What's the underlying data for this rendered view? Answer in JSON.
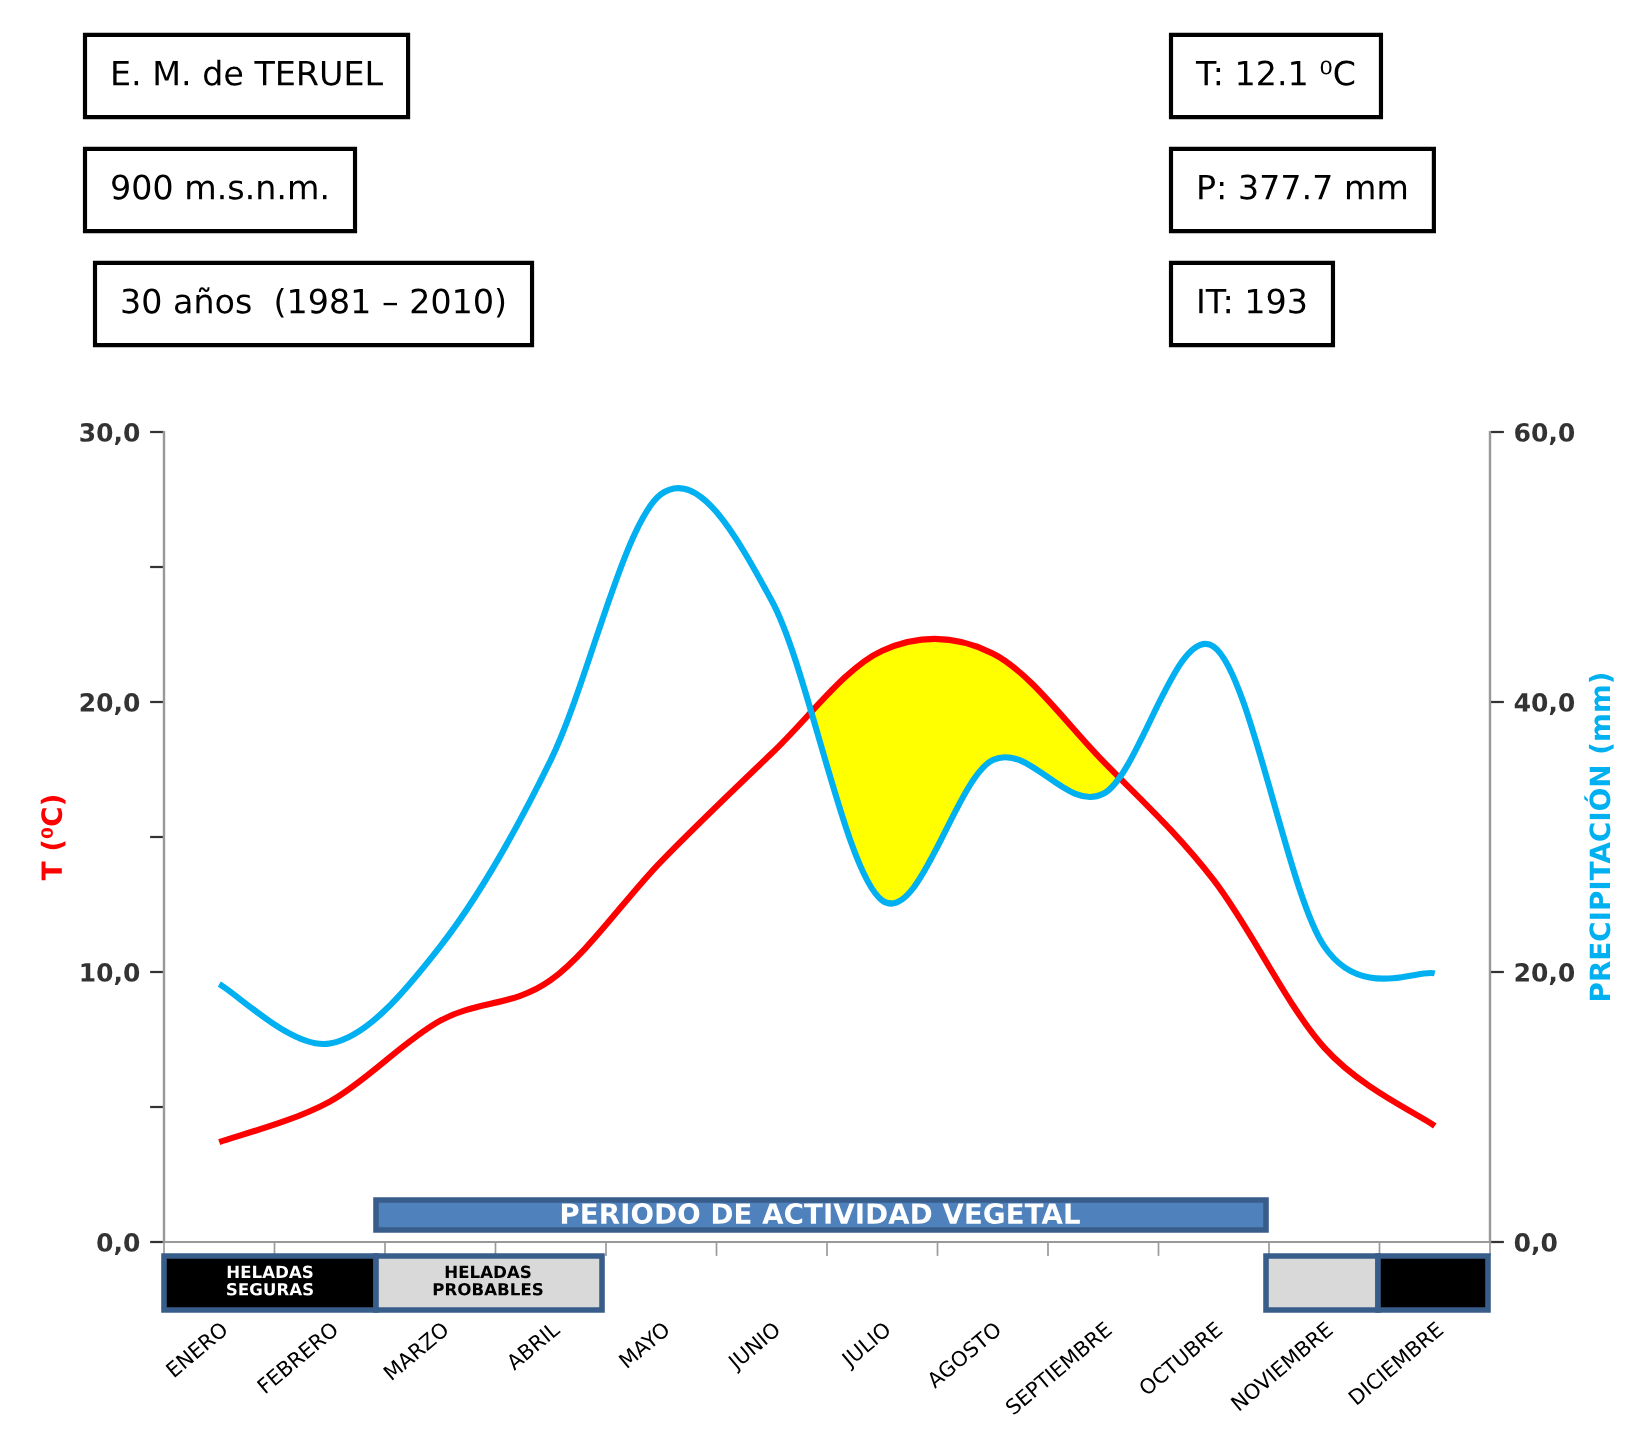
{
  "chart_data": {
    "type": "line",
    "categories": [
      "ENERO",
      "FEBRERO",
      "MARZO",
      "ABRIL",
      "MAYO",
      "JUNIO",
      "JULIO",
      "AGOSTO",
      "SEPTIEMBRE",
      "OCTUBRE",
      "NOVIEMBRE",
      "DICIEMBRE"
    ],
    "series": [
      {
        "color": "#ff0000",
        "values": [
          3.7,
          5.2,
          8.2,
          9.7,
          14.1,
          18.1,
          21.9,
          21.8,
          17.8,
          13.4,
          7.2,
          4.3
        ]
      },
      {
        "color": "#00b0f0",
        "axis": "y2",
        "values": [
          19.1,
          14.7,
          21.9,
          35.7,
          55.4,
          47.5,
          25.3,
          35.7,
          33.2,
          44.1,
          21.9,
          19.9
        ]
      }
    ],
    "ylabel": "T (⁰C)",
    "y2label": "PRECIPITACIÓN (mm)",
    "ylim": [
      0,
      30
    ],
    "yticks": [
      {
        "value": 0,
        "label": "0,0"
      },
      {
        "value": 5,
        "label": null
      },
      {
        "value": 10,
        "label": "10,0"
      },
      {
        "value": 15,
        "label": null
      },
      {
        "value": 20,
        "label": "20,0"
      },
      {
        "value": 25,
        "label": null
      },
      {
        "value": 30,
        "label": "30,0"
      }
    ],
    "y2lim": [
      0,
      60
    ],
    "y2ticks": [
      {
        "value": 0,
        "label": "0,0"
      },
      {
        "value": 20,
        "label": "20,0"
      },
      {
        "value": 40,
        "label": "40,0"
      },
      {
        "value": 60,
        "label": "60,0"
      }
    ],
    "annotations": [
      "E. M. de TERUEL",
      "900 m.s.n.m.",
      "30 años  (1981 – 2010)",
      "T: 12.1 ⁰C",
      "P: 377.7 mm",
      "IT: 193",
      "PERIODO DE ACTIVIDAD VEGETAL",
      "HELADAS\nSEGURAS",
      "HELADAS\nPROBABLES"
    ],
    "grid": false,
    "legend": false
  }
}
